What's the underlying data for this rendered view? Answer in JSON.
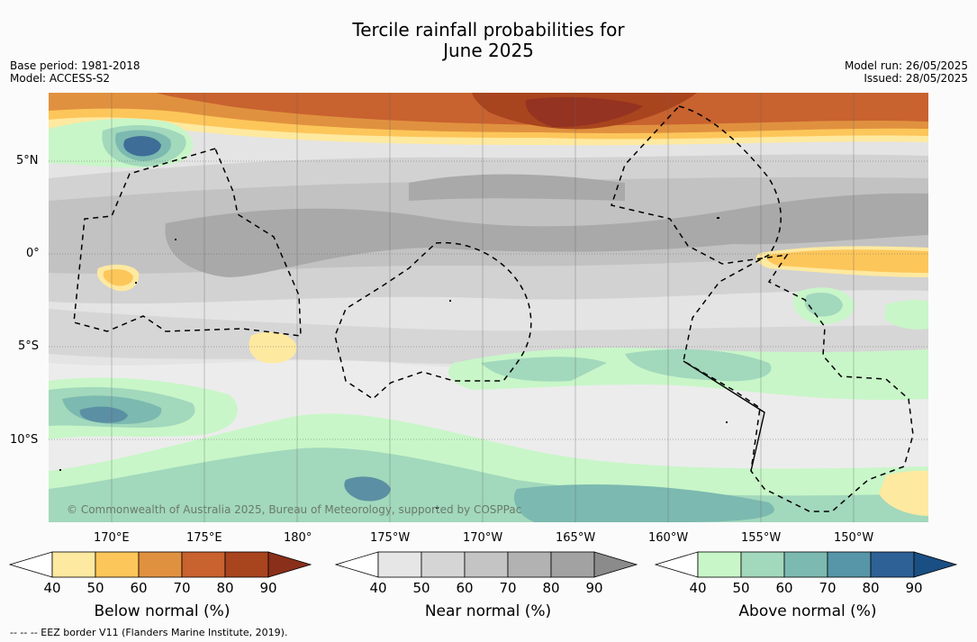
{
  "title_line1": "Tercile rainfall probabilities for",
  "title_line2": "June 2025",
  "meta_left": {
    "base_period": "Base period: 1981-2018",
    "model": "Model: ACCESS-S2"
  },
  "meta_right": {
    "model_run": "Model run: 26/05/2025",
    "issued": "Issued: 28/05/2025"
  },
  "lat_ticks": [
    "5°N",
    "0°",
    "5°S",
    "10°S"
  ],
  "lon_ticks": [
    "170°E",
    "175°E",
    "180°",
    "175°W",
    "170°W",
    "165°W",
    "160°W",
    "155°W",
    "150°W"
  ],
  "copyright": "© Commonwealth of Australia 2025, Bureau of Meteorology, supported by COSPPac",
  "footnote": "--  --  -- EEZ border V11 (Flanders Marine Institute, 2019).",
  "colorbars": [
    {
      "label": "Below normal (%)",
      "ticks": [
        "40",
        "50",
        "60",
        "70",
        "80",
        "90"
      ],
      "colors": [
        "#ffffff",
        "#fee9a0",
        "#fdc65a",
        "#e0913f",
        "#c8622f",
        "#a8441e",
        "#8a2f19"
      ]
    },
    {
      "label": "Near normal (%)",
      "ticks": [
        "40",
        "50",
        "60",
        "70",
        "80",
        "90"
      ],
      "colors": [
        "#ffffff",
        "#e6e6e6",
        "#d5d5d5",
        "#c4c4c4",
        "#b2b2b2",
        "#a2a2a2",
        "#8b8b8b"
      ]
    },
    {
      "label": "Above normal (%)",
      "ticks": [
        "40",
        "50",
        "60",
        "70",
        "80",
        "90"
      ],
      "colors": [
        "#ffffff",
        "#c8f6c8",
        "#a2d8bc",
        "#7cb9b0",
        "#5795a8",
        "#2e6196",
        "#1a4f84"
      ]
    }
  ]
}
